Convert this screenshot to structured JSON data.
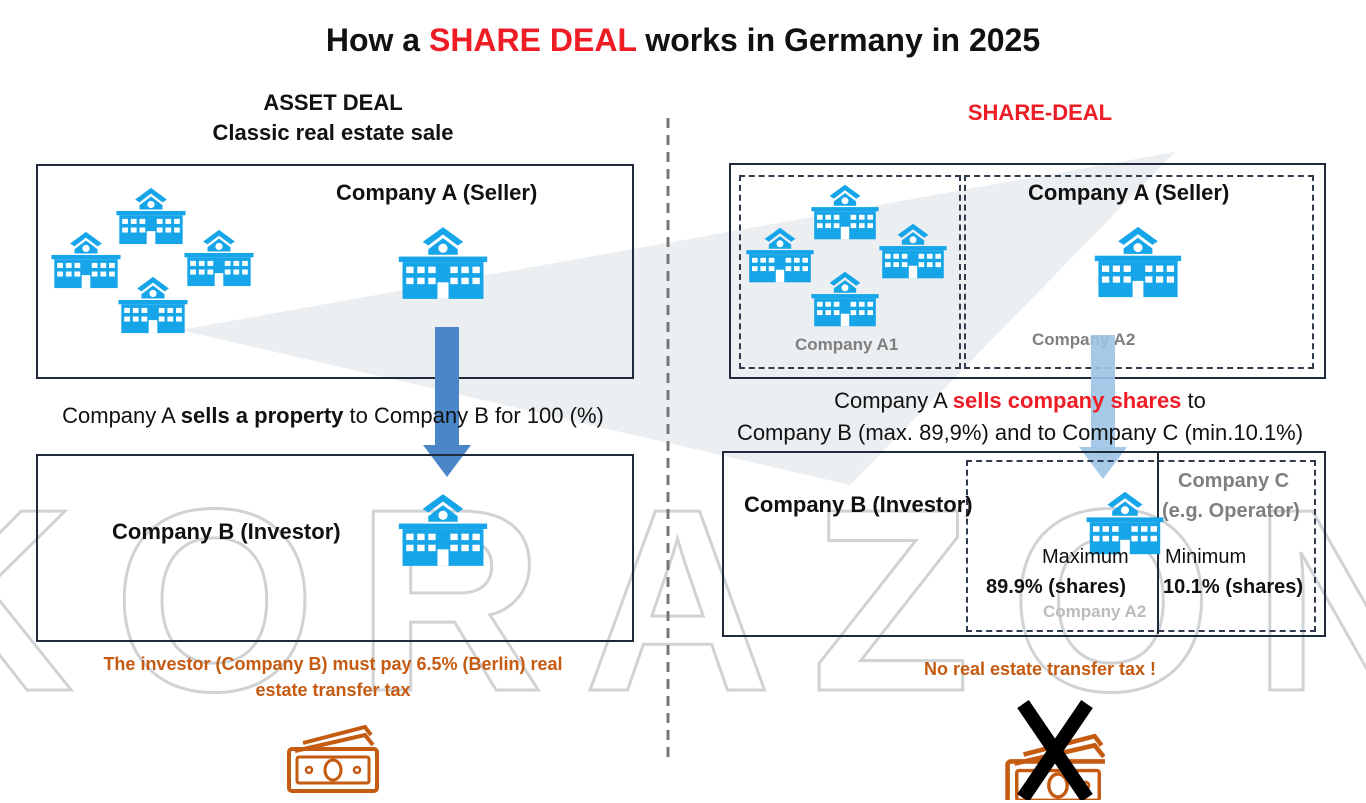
{
  "title": {
    "pre": "How a ",
    "highlight": "SHARE DEAL",
    "post": " works in Germany in 2025"
  },
  "colors": {
    "icon": "#15a5e8",
    "red": "#ee1c24",
    "orange": "#c55a11",
    "arrow": "#4a86c8"
  },
  "asset": {
    "heading1": "ASSET DEAL",
    "heading2": "Classic real estate sale",
    "seller": "Company A (Seller)",
    "sell_pre": "Company A ",
    "sell_bold": "sells a property",
    "sell_post": " to Company B for 100 (%)",
    "investor": "Company B (Investor)",
    "tax_line1": "The investor (Company B) must pay 6.5% (Berlin) real",
    "tax_line2": "estate transfer tax",
    "icon": "money-icon"
  },
  "share": {
    "heading": "SHARE-DEAL",
    "seller": "Company A (Seller)",
    "a1": "Company A1",
    "a2": "Company A2",
    "sell_pre": "Company A ",
    "sell_bold": "sells company shares",
    "sell_post": " to",
    "sell_line2": "Company B (max. 89,9%) and to Company C (min.10.1%)",
    "investor": "Company B (Investor)",
    "company_c": "Company C",
    "operator": "(e.g. Operator)",
    "maximum": "Maximum",
    "max_value": "89.9% (shares)",
    "minimum": "Minimum",
    "min_value": "10.1% (shares)",
    "a2_ghost": "Company A2",
    "no_tax": "No real estate transfer tax !",
    "icon": "money-crossed-icon"
  },
  "watermark": "KORAZON"
}
